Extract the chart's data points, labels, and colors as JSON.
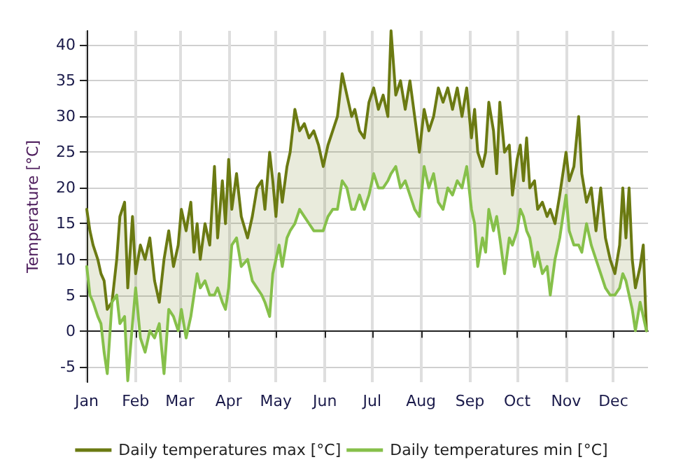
{
  "chart_data": {
    "type": "line",
    "ylabel": "Temperature [°C]",
    "x": [
      "--01-01",
      "--01-03",
      "--01-05",
      "--01-08",
      "--01-10",
      "--01-12",
      "--01-14",
      "--01-17",
      "--01-20",
      "--01-22",
      "--01-25",
      "--01-27",
      "--01-30",
      "--02-01",
      "--02-04",
      "--02-07",
      "--02-10",
      "--02-13",
      "--02-16",
      "--02-19",
      "--02-22",
      "--02-25",
      "--02-28",
      "--03-02",
      "--03-05",
      "--03-08",
      "--03-10",
      "--03-12",
      "--03-14",
      "--03-17",
      "--03-20",
      "--03-23",
      "--03-25",
      "--03-28",
      "--03-30",
      "--04-01",
      "--04-03",
      "--04-06",
      "--04-09",
      "--04-13",
      "--04-16",
      "--04-19",
      "--04-22",
      "--04-24",
      "--04-27",
      "--04-29",
      "--05-01",
      "--05-03",
      "--05-05",
      "--05-08",
      "--05-10",
      "--05-13",
      "--05-16",
      "--05-19",
      "--05-22",
      "--05-25",
      "--05-28",
      "--05-31",
      "--06-03",
      "--06-06",
      "--06-09",
      "--06-12",
      "--06-15",
      "--06-18",
      "--06-20",
      "--06-23",
      "--06-26",
      "--06-29",
      "--07-02",
      "--07-05",
      "--07-08",
      "--07-11",
      "--07-13",
      "--07-16",
      "--07-19",
      "--07-22",
      "--07-25",
      "--07-28",
      "--07-31",
      "--08-03",
      "--08-06",
      "--08-09",
      "--08-12",
      "--08-15",
      "--08-18",
      "--08-21",
      "--08-24",
      "--08-27",
      "--08-30",
      "--09-02",
      "--09-04",
      "--09-06",
      "--09-09",
      "--09-11",
      "--09-13",
      "--09-16",
      "--09-18",
      "--09-20",
      "--09-23",
      "--09-26",
      "--09-28",
      "--10-01",
      "--10-03",
      "--10-05",
      "--10-07",
      "--10-09",
      "--10-12",
      "--10-14",
      "--10-17",
      "--10-20",
      "--10-22",
      "--10-25",
      "--10-28",
      "--11-01",
      "--11-03",
      "--11-06",
      "--11-09",
      "--11-11",
      "--11-14",
      "--11-17",
      "--11-20",
      "--11-23",
      "--11-26",
      "--11-29",
      "--12-02",
      "--12-05",
      "--12-07",
      "--12-09",
      "--12-11",
      "--12-13",
      "--12-15",
      "--12-18",
      "--12-20",
      "--12-22"
    ],
    "series": [
      {
        "name": "Daily temperatures max [°C]",
        "color": "#6b7a12",
        "values": [
          17,
          14,
          12,
          10,
          8,
          7,
          3,
          4,
          10,
          16,
          18,
          6,
          16,
          8,
          12,
          10,
          13,
          7,
          4,
          10,
          14,
          9,
          12,
          17,
          14,
          18,
          11,
          15,
          10,
          15,
          12,
          23,
          13,
          21,
          15,
          24,
          17,
          22,
          16,
          13,
          16,
          20,
          21,
          17,
          25,
          21,
          16,
          22,
          18,
          23,
          25,
          31,
          28,
          29,
          27,
          28,
          26,
          23,
          26,
          28,
          30,
          36,
          33,
          30,
          31,
          28,
          27,
          32,
          34,
          31,
          33,
          30,
          42,
          33,
          35,
          31,
          35,
          30,
          25,
          31,
          28,
          30,
          34,
          32,
          34,
          31,
          34,
          30,
          34,
          27,
          31,
          25,
          23,
          25,
          32,
          28,
          22,
          32,
          25,
          26,
          19,
          24,
          26,
          21,
          27,
          20,
          21,
          17,
          18,
          16,
          17,
          15,
          19,
          25,
          21,
          23,
          30,
          22,
          18,
          20,
          14,
          20,
          13,
          10,
          8,
          12,
          20,
          13,
          20,
          10,
          6,
          9,
          12,
          0
        ],
        "lower": [
          9,
          5,
          4,
          2,
          1,
          -3,
          -6,
          4,
          5,
          1,
          2,
          -7,
          1,
          6,
          -1,
          -3,
          0,
          -1,
          1,
          -6,
          3,
          2,
          0,
          3,
          -1,
          2,
          5,
          8,
          6,
          7,
          5,
          5,
          6,
          4,
          3,
          6,
          12,
          13,
          9,
          10,
          7,
          6,
          5,
          4,
          2,
          8,
          10,
          12,
          9,
          13,
          14,
          15,
          17,
          16,
          15,
          14,
          14,
          14,
          16,
          17,
          17,
          21,
          20,
          17,
          17,
          19,
          17,
          19,
          22,
          20,
          20,
          21,
          22,
          23,
          20,
          21,
          19,
          17,
          16,
          23,
          20,
          22,
          18,
          17,
          20,
          19,
          21,
          20,
          23,
          17,
          15,
          9,
          13,
          11,
          17,
          14,
          16,
          13,
          8,
          13,
          12,
          14,
          17,
          16,
          14,
          13,
          9,
          11,
          8,
          9,
          5,
          10,
          13,
          19,
          14,
          12,
          12,
          11,
          15,
          12,
          10,
          8,
          6,
          5,
          5,
          6,
          8,
          7,
          5,
          3,
          0,
          4,
          2,
          0
        ],
        "upper": [
          17,
          14,
          12,
          10,
          8,
          7,
          3,
          4,
          10,
          16,
          18,
          6,
          16,
          8,
          12,
          10,
          13,
          7,
          4,
          10,
          14,
          9,
          12,
          17,
          14,
          18,
          11,
          15,
          10,
          15,
          12,
          23,
          13,
          21,
          15,
          24,
          17,
          22,
          16,
          13,
          16,
          20,
          21,
          17,
          25,
          21,
          16,
          22,
          18,
          23,
          25,
          31,
          28,
          29,
          27,
          28,
          26,
          23,
          26,
          28,
          30,
          36,
          33,
          30,
          31,
          28,
          27,
          32,
          34,
          31,
          33,
          30,
          42,
          33,
          35,
          31,
          35,
          30,
          25,
          31,
          28,
          30,
          34,
          32,
          34,
          31,
          34,
          30,
          34,
          27,
          31,
          25,
          23,
          25,
          32,
          28,
          22,
          32,
          25,
          26,
          19,
          24,
          26,
          21,
          27,
          20,
          21,
          17,
          18,
          16,
          17,
          15,
          19,
          25,
          21,
          23,
          30,
          22,
          18,
          20,
          14,
          20,
          13,
          10,
          8,
          12,
          20,
          13,
          20,
          10,
          6,
          9,
          12,
          0
        ]
      },
      {
        "name": "Daily temperatures min [°C]",
        "color": "#86c04a",
        "values": [
          9,
          5,
          4,
          2,
          1,
          -3,
          -6,
          4,
          5,
          1,
          2,
          -7,
          1,
          6,
          -1,
          -3,
          0,
          -1,
          1,
          -6,
          3,
          2,
          0,
          3,
          -1,
          2,
          5,
          8,
          6,
          7,
          5,
          5,
          6,
          4,
          3,
          6,
          12,
          13,
          9,
          10,
          7,
          6,
          5,
          4,
          2,
          8,
          10,
          12,
          9,
          13,
          14,
          15,
          17,
          16,
          15,
          14,
          14,
          14,
          16,
          17,
          17,
          21,
          20,
          17,
          17,
          19,
          17,
          19,
          22,
          20,
          20,
          21,
          22,
          23,
          20,
          21,
          19,
          17,
          16,
          23,
          20,
          22,
          18,
          17,
          20,
          19,
          21,
          20,
          23,
          17,
          15,
          9,
          13,
          11,
          17,
          14,
          16,
          13,
          8,
          13,
          12,
          14,
          17,
          16,
          14,
          13,
          9,
          11,
          8,
          9,
          5,
          10,
          13,
          19,
          14,
          12,
          12,
          11,
          15,
          12,
          10,
          8,
          6,
          5,
          5,
          6,
          8,
          7,
          5,
          3,
          0,
          4,
          2,
          0
        ]
      }
    ],
    "xlim": [
      "--01-01",
      "--12-23"
    ],
    "xticks": [
      {
        "value": "--01-01",
        "label": "Jan"
      },
      {
        "value": "--02-01",
        "label": "Feb"
      },
      {
        "value": "--03-01",
        "label": "Mar"
      },
      {
        "value": "--04-01",
        "label": "Apr"
      },
      {
        "value": "--05-01",
        "label": "May"
      },
      {
        "value": "--06-01",
        "label": "Jun"
      },
      {
        "value": "--07-01",
        "label": "Jul"
      },
      {
        "value": "--08-01",
        "label": "Aug"
      },
      {
        "value": "--09-01",
        "label": "Sep"
      },
      {
        "value": "--10-01",
        "label": "Oct"
      },
      {
        "value": "--11-01",
        "label": "Nov"
      },
      {
        "value": "--12-01",
        "label": "Dec"
      }
    ],
    "ylim": [
      -7.2,
      42
    ],
    "yticks": [
      -5,
      0,
      5,
      10,
      15,
      20,
      25,
      30,
      35,
      40
    ],
    "grid": true,
    "legend": "bottom",
    "marker": "none",
    "line_style": "solid"
  }
}
